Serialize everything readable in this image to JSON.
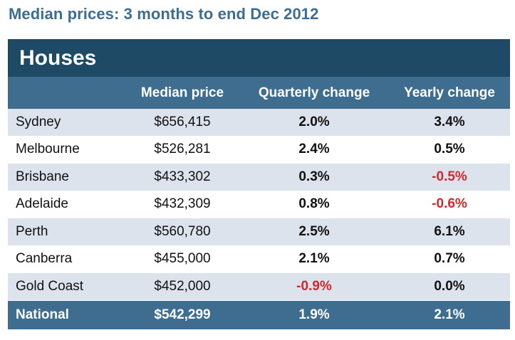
{
  "title": "Median prices: 3 months to end Dec 2012",
  "section": "Houses",
  "columns": [
    "",
    "Median price",
    "Quarterly change",
    "Yearly change"
  ],
  "rows": [
    {
      "city": "Sydney",
      "price": "$656,415",
      "quarterly": "2.0%",
      "yearly": "3.4%"
    },
    {
      "city": "Melbourne",
      "price": "$526,281",
      "quarterly": "2.4%",
      "yearly": "0.5%"
    },
    {
      "city": "Brisbane",
      "price": "$433,302",
      "quarterly": "0.3%",
      "yearly": "-0.5%"
    },
    {
      "city": "Adelaide",
      "price": "$432,309",
      "quarterly": "0.8%",
      "yearly": "-0.6%"
    },
    {
      "city": "Perth",
      "price": "$560,780",
      "quarterly": "2.5%",
      "yearly": "6.1%"
    },
    {
      "city": "Canberra",
      "price": "$455,000",
      "quarterly": "2.1%",
      "yearly": "0.7%"
    },
    {
      "city": "Gold Coast",
      "price": "$452,000",
      "quarterly": "-0.9%",
      "yearly": "0.0%"
    }
  ],
  "national": {
    "city": "National",
    "price": "$542,299",
    "quarterly": "1.9%",
    "yearly": "2.1%"
  },
  "colors": {
    "title": "#3e6d8f",
    "section_header_bg": "#1e4a66",
    "column_header_bg": "#3e6d8f",
    "row_shaded_bg": "#dde3ec",
    "negative_value": "#d6262b"
  }
}
